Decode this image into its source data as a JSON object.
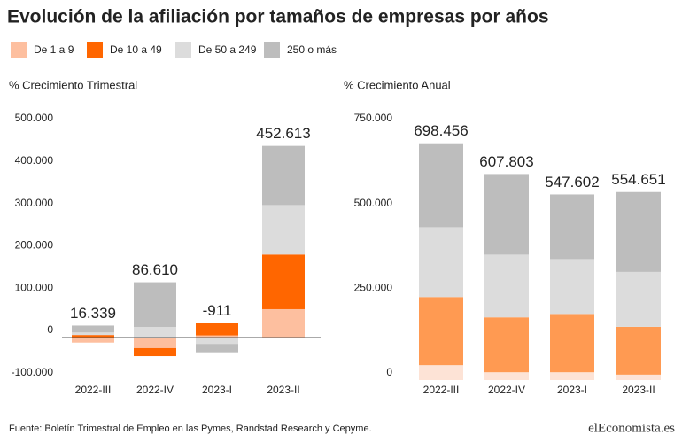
{
  "title": "Evolución de la afiliación por tamaños de empresas por años",
  "source": "Fuente: Boletín Trimestral de Empleo en las Pymes, Randstad Research y Cepyme.",
  "logo": "elEconomista.es",
  "chart_data": [
    {
      "type": "stacked_bar",
      "title": "% Crecimiento Trimestral",
      "baseline": true,
      "categories": [
        "2022-III",
        "2022-IV",
        "2023-I",
        "2023-II"
      ],
      "series": [
        {
          "name": "De 1 a 9",
          "color": "#fdbf9f",
          "values": [
            -12000,
            -25000,
            5000,
            67000
          ]
        },
        {
          "name": "De 10 a 49",
          "color": "#ff6600",
          "values": [
            6000,
            -19000,
            29000,
            129000
          ]
        },
        {
          "name": "De 50 a 249",
          "color": "#dcdcdc",
          "values": [
            6000,
            25000,
            -15000,
            117000
          ]
        },
        {
          "name": "250 o más",
          "color": "#bdbdbd",
          "values": [
            16339,
            105610,
            -19911,
            139613
          ]
        }
      ],
      "totals": [
        16339,
        86610,
        -911,
        452613
      ],
      "value_labels": [
        "16.339",
        "86.610",
        "-911",
        "452.613"
      ],
      "ylim": [
        -100000,
        500000
      ],
      "yticks": [
        {
          "value": 500000,
          "label": "500.000"
        },
        {
          "value": 400000,
          "label": "400.000"
        },
        {
          "value": 300000,
          "label": "300.000"
        },
        {
          "value": 200000,
          "label": "200.000"
        },
        {
          "value": 100000,
          "label": "100.000"
        },
        0,
        {
          "value": -100000,
          "label": "-100.000"
        }
      ]
    },
    {
      "type": "stacked_bar",
      "title": "% Crecimiento Anual",
      "baseline": false,
      "categories": [
        "2022-III",
        "2022-IV",
        "2023-I",
        "2023-II"
      ],
      "series": [
        {
          "name": "De 1 a 9",
          "color": "#fde3d6",
          "values": [
            44000,
            23000,
            23000,
            16000
          ]
        },
        {
          "name": "De 10 a 49",
          "color": "#ff9a52",
          "values": [
            201000,
            162000,
            172000,
            141000
          ]
        },
        {
          "name": "De 50 a 249",
          "color": "#dcdcdc",
          "values": [
            206000,
            185000,
            162000,
            162000
          ]
        },
        {
          "name": "250 o más",
          "color": "#bdbdbd",
          "values": [
            247456,
            237803,
            190602,
            235651
          ]
        }
      ],
      "totals": [
        698456,
        607803,
        547602,
        554651
      ],
      "value_labels": [
        "698.456",
        "607.803",
        "547.602",
        "554.651"
      ],
      "ylim": [
        0,
        750000
      ],
      "yticks": [
        {
          "value": 750000,
          "label": "750.000"
        },
        {
          "value": 500000,
          "label": "500.000"
        },
        {
          "value": 250000,
          "label": "250.000"
        },
        0
      ]
    }
  ]
}
